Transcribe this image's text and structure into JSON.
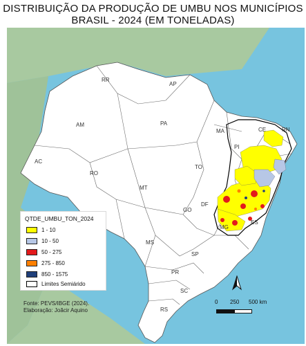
{
  "title": {
    "line1": "DISTRIBUIÇÃO DA PRODUÇÃO DE UMBU NOS MUNICÍPIOS",
    "line2": "BRASIL - 2024 (EM TONELADAS)"
  },
  "states": [
    "RR",
    "AP",
    "AM",
    "PA",
    "MA",
    "CE",
    "RN",
    "PI",
    "AC",
    "RO",
    "TO",
    "MT",
    "DF",
    "GO",
    "MG",
    "MS",
    "ES",
    "SP",
    "PR",
    "SC",
    "RS"
  ],
  "legend": {
    "title": "QTDE_UMBU_TON_2024",
    "items": [
      {
        "label": "1 - 10",
        "color": "#ffff00"
      },
      {
        "label": "10 - 50",
        "color": "#b7c7e6"
      },
      {
        "label": "50 - 275",
        "color": "#e31a1c"
      },
      {
        "label": "275 - 850",
        "color": "#ff8000"
      },
      {
        "label": "850 - 1575",
        "color": "#1f3f7a"
      },
      {
        "label": "Limites Semiárido",
        "color": "#ffffff"
      }
    ]
  },
  "source": {
    "line1": "Fonte: PEVS/IBGE (2024).",
    "line2": "Elaboração: Joãcir Aquino"
  },
  "scale": {
    "tick0": "0",
    "tick1": "250",
    "tick2": "500 km"
  },
  "colors": {
    "ocean": "#77c4df",
    "land_outside": "#a8c9a0",
    "brazil": "#ffffff",
    "border": "#555555",
    "semiarid": "#000000"
  },
  "north_arrow": "north-arrow-icon"
}
